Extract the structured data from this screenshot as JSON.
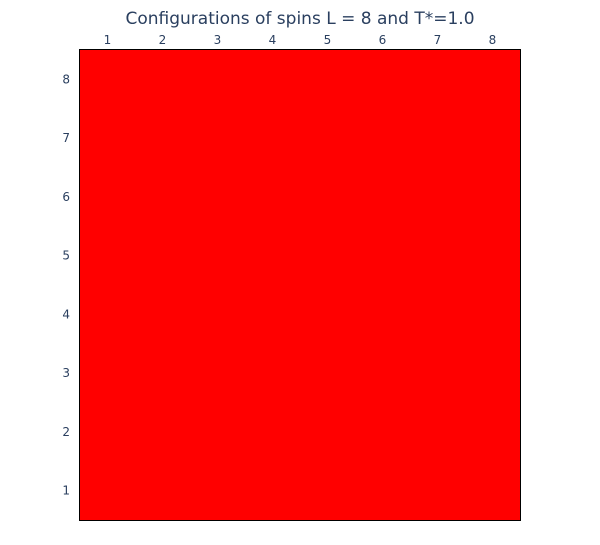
{
  "chart_data": {
    "type": "heatmap",
    "title": "Configurations of spins L = 8 and T*=1.0",
    "xlabel": "",
    "ylabel": "",
    "x_ticks": [
      "1",
      "2",
      "3",
      "4",
      "5",
      "6",
      "7",
      "8"
    ],
    "y_ticks": [
      "1",
      "2",
      "3",
      "4",
      "5",
      "6",
      "7",
      "8"
    ],
    "x_axis_position": "top",
    "y_axis_position": "left",
    "y_direction": "bottom-to-top",
    "grid": false,
    "legend": "none",
    "z": [
      [
        1,
        1,
        1,
        1,
        1,
        1,
        1,
        1
      ],
      [
        1,
        1,
        1,
        1,
        1,
        1,
        1,
        1
      ],
      [
        1,
        1,
        1,
        1,
        1,
        1,
        1,
        1
      ],
      [
        1,
        1,
        1,
        1,
        1,
        1,
        1,
        1
      ],
      [
        1,
        1,
        1,
        1,
        1,
        1,
        1,
        1
      ],
      [
        1,
        1,
        1,
        1,
        1,
        1,
        1,
        1
      ],
      [
        1,
        1,
        1,
        1,
        1,
        1,
        1,
        1
      ],
      [
        1,
        1,
        1,
        1,
        1,
        1,
        1,
        1
      ]
    ],
    "colors": {
      "spin_up": "#ff0000",
      "spin_down": "#0000ff",
      "border": "#000000",
      "text": "#2a3f5f"
    }
  }
}
